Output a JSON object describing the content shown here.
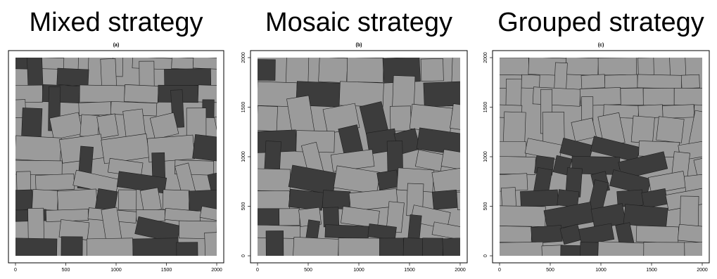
{
  "panels": [
    {
      "title": "Mixed strategy",
      "subtitle": "(a)",
      "xlim": [
        0,
        2000
      ],
      "ylim": [
        0,
        2000
      ],
      "xticks": [
        0,
        500,
        1000,
        1500,
        2000
      ]
    },
    {
      "title": "Mosaic strategy",
      "subtitle": "(b)",
      "xlim": [
        0,
        2000
      ],
      "ylim": [
        0,
        2000
      ],
      "xticks": [
        0,
        500,
        1000,
        1500,
        2000
      ],
      "yticks": [
        0,
        500,
        1000,
        1500,
        2000
      ]
    },
    {
      "title": "Grouped strategy",
      "subtitle": "(c)",
      "xlim": [
        0,
        2000
      ],
      "ylim": [
        0,
        2000
      ],
      "xticks": [
        0,
        500,
        1000,
        1500,
        2000
      ],
      "yticks": [
        0,
        500,
        1000,
        1500,
        2000
      ]
    }
  ]
}
